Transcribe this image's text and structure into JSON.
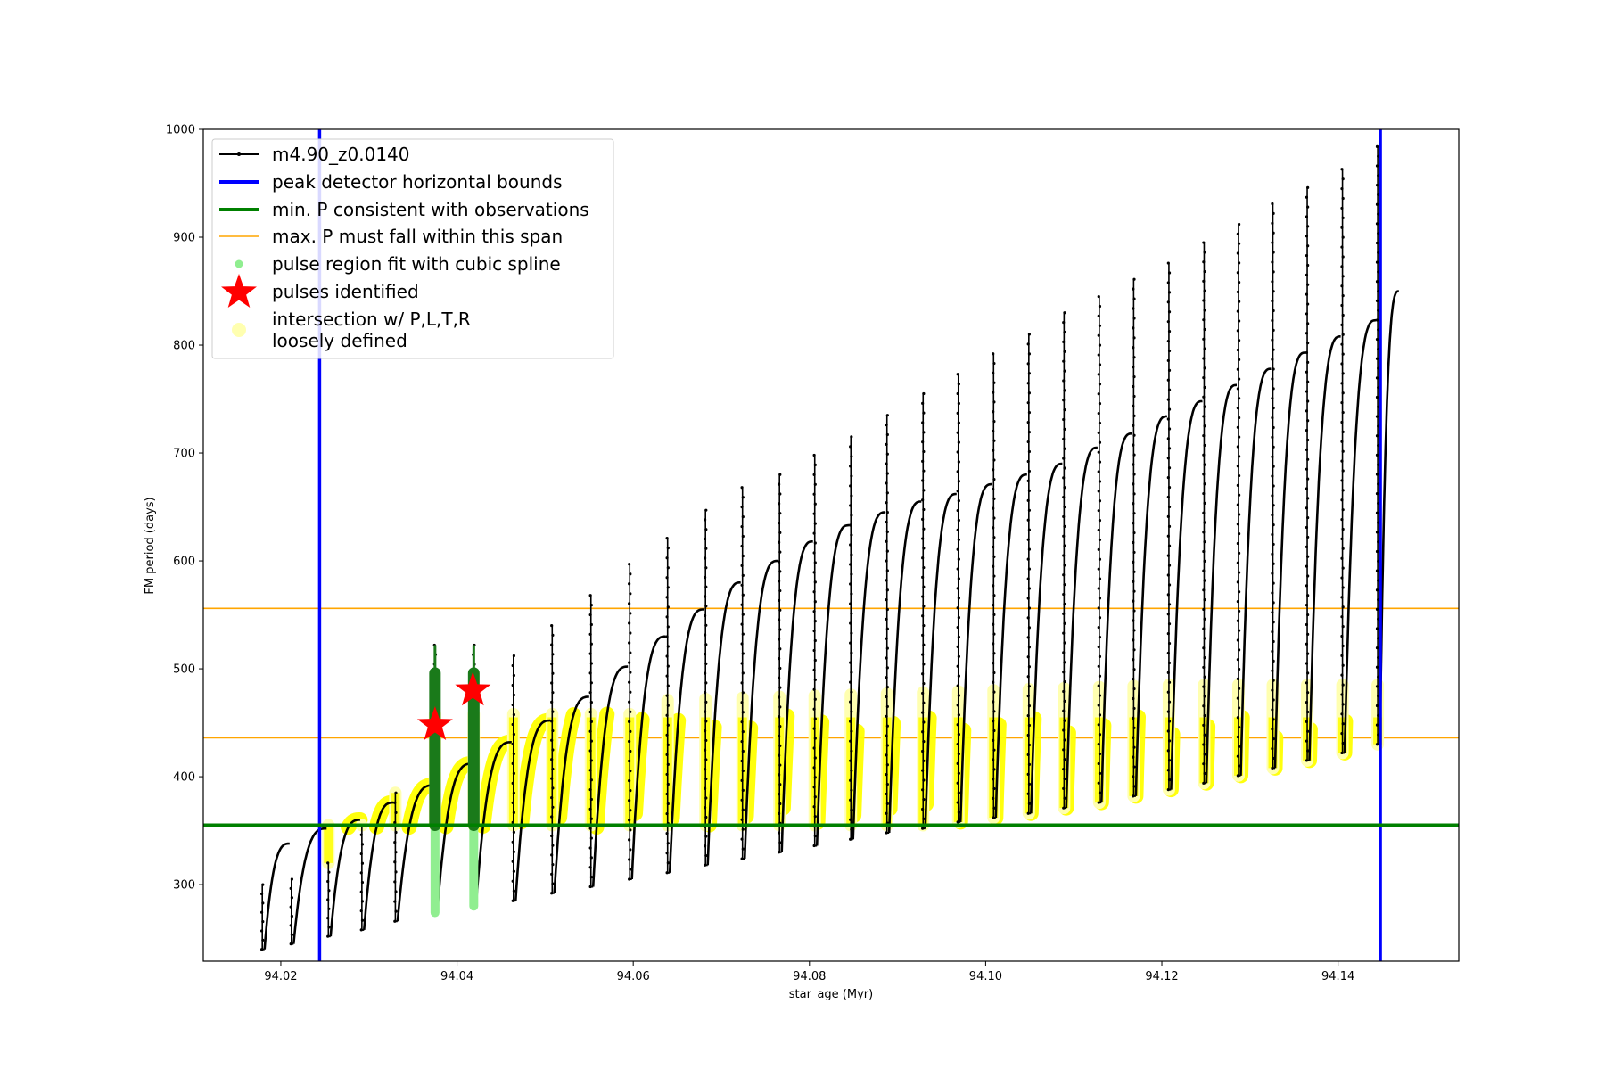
{
  "chart_data": {
    "type": "line",
    "title": "",
    "xlabel": "star_age (Myr)",
    "ylabel": "FM period (days)",
    "xlim": [
      94.0112,
      94.1537
    ],
    "ylim": [
      229,
      1000
    ],
    "xticks": [
      94.02,
      94.04,
      94.06,
      94.08,
      94.1,
      94.12,
      94.14
    ],
    "xtick_labels": [
      "94.02",
      "94.04",
      "94.06",
      "94.08",
      "94.10",
      "94.12",
      "94.14"
    ],
    "yticks": [
      300,
      400,
      500,
      600,
      700,
      800,
      900,
      1000
    ],
    "ytick_labels": [
      "300",
      "400",
      "500",
      "600",
      "700",
      "800",
      "900",
      "1000"
    ],
    "grid": false,
    "legend_position": "top-left",
    "colors": {
      "track": "#000000",
      "bounds": "#0000ff",
      "min_p": "#008000",
      "max_p": "#ffa500",
      "spline": "#90ee90",
      "spline_dark": "#1a7a1a",
      "star": "#ff0000",
      "intersection": "#ffff00",
      "intersection_faint": "#ffffb0"
    },
    "legend": [
      {
        "label": "m4.90_z0.0140",
        "marker": "line-dot",
        "color": "#000000"
      },
      {
        "label": "peak detector horizontal bounds",
        "marker": "thick-line",
        "color": "#0000ff"
      },
      {
        "label": "min. P consistent with observations",
        "marker": "thick-line",
        "color": "#008000"
      },
      {
        "label": "max. P must fall within this span",
        "marker": "line",
        "color": "#ffa500"
      },
      {
        "label": "pulse region fit with cubic spline",
        "marker": "dot",
        "color": "#90ee90"
      },
      {
        "label": "pulses identified",
        "marker": "star",
        "color": "#ff0000"
      },
      {
        "label": "intersection w/ P,L,T,R",
        "label2": "loosely defined",
        "marker": "circle",
        "color": "#ffffb0"
      }
    ],
    "vertical_lines": [
      94.0244,
      94.1448
    ],
    "horizontal_min_p": 355,
    "horizontal_max_p": [
      436,
      556
    ],
    "pulses": {
      "ages": [
        94.0179,
        94.0212,
        94.0254,
        94.0292,
        94.033,
        94.0375,
        94.0419,
        94.0464,
        94.0508,
        94.0552,
        94.0596,
        94.0639,
        94.0682,
        94.0724,
        94.0766,
        94.0806,
        94.0847,
        94.0888,
        94.0929,
        94.0969,
        94.1009,
        94.1049,
        94.1089,
        94.1129,
        94.1168,
        94.1208,
        94.1248,
        94.1287,
        94.1326,
        94.1365,
        94.1405,
        94.1445
      ],
      "trough": [
        240,
        245,
        252,
        258,
        266,
        274,
        280,
        285,
        292,
        298,
        305,
        311,
        318,
        324,
        330,
        336,
        342,
        348,
        352,
        358,
        362,
        366,
        371,
        376,
        382,
        388,
        394,
        401,
        408,
        415,
        422,
        430
      ],
      "plateau": [
        338,
        352,
        360,
        376,
        392,
        412,
        432,
        452,
        474,
        502,
        530,
        555,
        580,
        600,
        618,
        633,
        645,
        655,
        662,
        671,
        680,
        690,
        705,
        718,
        734,
        748,
        763,
        778,
        793,
        808,
        823,
        838
      ],
      "spike": [
        300,
        305,
        320,
        355,
        385,
        522,
        522,
        512,
        540,
        568,
        597,
        621,
        647,
        668,
        680,
        698,
        715,
        735,
        755,
        773,
        792,
        810,
        830,
        845,
        861,
        876,
        895,
        912,
        931,
        946,
        963,
        984
      ]
    },
    "final_age": 94.1471,
    "final_value": 850,
    "identified_pulses": [
      {
        "x": 94.0375,
        "y": 448
      },
      {
        "x": 94.0418,
        "y": 480
      }
    ]
  }
}
